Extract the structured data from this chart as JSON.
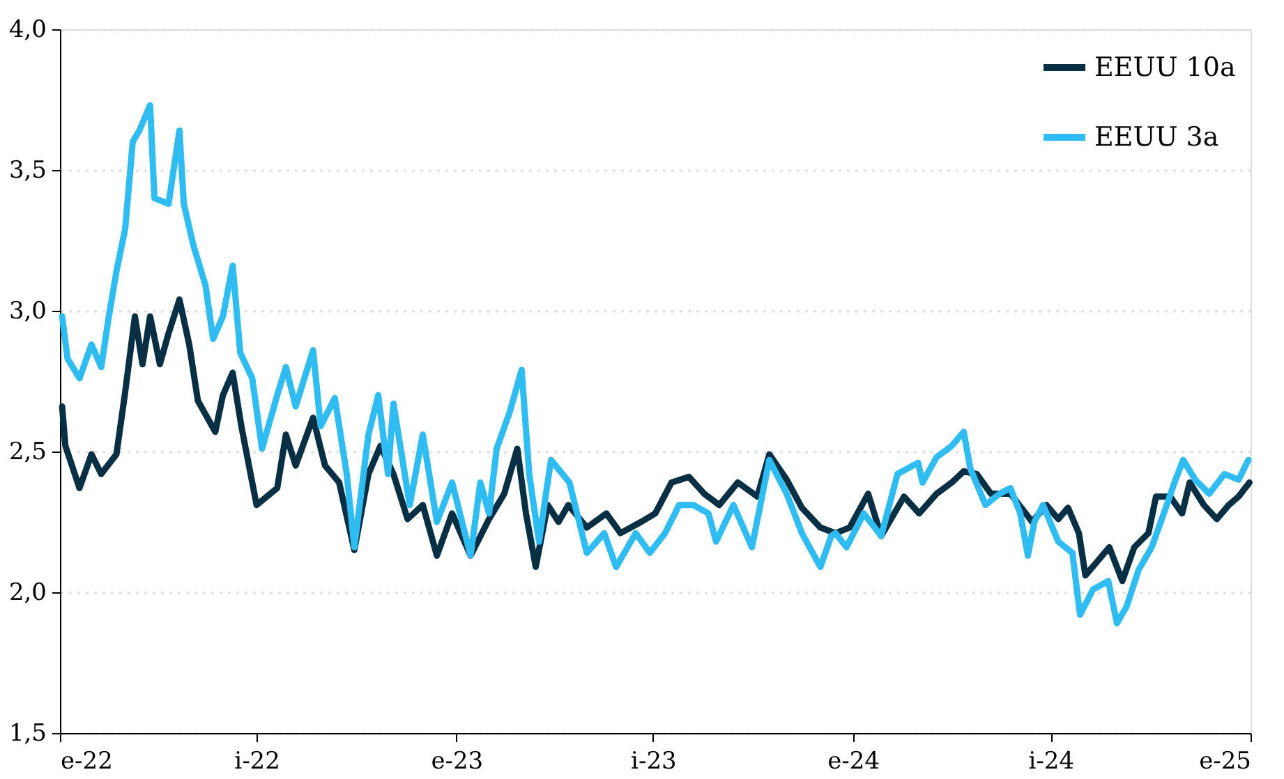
{
  "chart_data": {
    "type": "line",
    "xlim": [
      "2022-01-01",
      "2025-01-01"
    ],
    "xticks": [
      {
        "value": "2022-01-01",
        "label": "e-22"
      },
      {
        "value": "2022-07-01",
        "label": "i-22"
      },
      {
        "value": "2023-01-01",
        "label": "e-23"
      },
      {
        "value": "2023-07-01",
        "label": "i-23"
      },
      {
        "value": "2024-01-01",
        "label": "e-24"
      },
      {
        "value": "2024-07-01",
        "label": "i-24"
      },
      {
        "value": "2025-01-01",
        "label": "e-25"
      }
    ],
    "ylim": [
      1.5,
      4.0
    ],
    "yticks": [
      {
        "value": 1.5,
        "label": "1,5"
      },
      {
        "value": 2.0,
        "label": "2,0"
      },
      {
        "value": 2.5,
        "label": "2,5"
      },
      {
        "value": 3.0,
        "label": "3,0"
      },
      {
        "value": 3.5,
        "label": "3,5"
      },
      {
        "value": 4.0,
        "label": "4,0"
      }
    ],
    "grid": "y",
    "legend": "top right",
    "marker": "none",
    "line_style": "solid",
    "series": [
      {
        "name": "EEUU 10a",
        "color": "#082f44",
        "x": [
          "2022-01-03",
          "2022-01-06",
          "2022-01-19",
          "2022-01-30",
          "2022-02-08",
          "2022-02-22",
          "2022-03-02",
          "2022-03-11",
          "2022-03-18",
          "2022-03-25",
          "2022-04-03",
          "2022-04-11",
          "2022-04-21",
          "2022-04-30",
          "2022-05-08",
          "2022-05-24",
          "2022-05-31",
          "2022-06-09",
          "2022-06-17",
          "2022-07-01",
          "2022-07-20",
          "2022-07-28",
          "2022-08-06",
          "2022-08-22",
          "2022-09-02",
          "2022-09-15",
          "2022-09-29",
          "2022-10-12",
          "2022-10-23",
          "2022-11-04",
          "2022-11-17",
          "2022-12-01",
          "2022-12-14",
          "2022-12-28",
          "2023-01-14",
          "2023-01-31",
          "2023-02-14",
          "2023-02-26",
          "2023-03-06",
          "2023-03-15",
          "2023-03-26",
          "2023-04-05",
          "2023-04-14",
          "2023-05-01",
          "2023-05-19",
          "2023-06-01",
          "2023-06-20",
          "2023-07-03",
          "2023-07-18",
          "2023-08-03",
          "2023-08-17",
          "2023-08-31",
          "2023-09-17",
          "2023-10-05",
          "2023-10-16",
          "2023-11-01",
          "2023-11-15",
          "2023-12-02",
          "2023-12-16",
          "2023-12-29",
          "2024-01-15",
          "2024-01-27",
          "2024-02-17",
          "2024-03-02",
          "2024-03-18",
          "2024-04-01",
          "2024-04-12",
          "2024-04-24",
          "2024-05-07",
          "2024-05-25",
          "2024-06-04",
          "2024-06-14",
          "2024-06-27",
          "2024-07-08",
          "2024-07-17",
          "2024-07-27",
          "2024-08-02",
          "2024-08-13",
          "2024-08-24",
          "2024-09-05",
          "2024-09-16",
          "2024-09-29",
          "2024-10-06",
          "2024-10-19",
          "2024-10-30",
          "2024-11-06",
          "2024-11-19",
          "2024-12-01",
          "2024-12-12",
          "2024-12-21",
          "2024-12-31"
        ],
        "values": [
          2.66,
          2.52,
          2.37,
          2.49,
          2.42,
          2.49,
          2.71,
          2.98,
          2.81,
          2.98,
          2.81,
          2.92,
          3.04,
          2.88,
          2.68,
          2.57,
          2.7,
          2.78,
          2.59,
          2.31,
          2.37,
          2.56,
          2.45,
          2.62,
          2.45,
          2.39,
          2.15,
          2.42,
          2.52,
          2.42,
          2.26,
          2.31,
          2.13,
          2.28,
          2.13,
          2.26,
          2.35,
          2.51,
          2.28,
          2.09,
          2.31,
          2.25,
          2.31,
          2.23,
          2.28,
          2.21,
          2.25,
          2.28,
          2.39,
          2.41,
          2.35,
          2.31,
          2.39,
          2.34,
          2.49,
          2.4,
          2.3,
          2.23,
          2.21,
          2.23,
          2.35,
          2.2,
          2.34,
          2.28,
          2.35,
          2.39,
          2.43,
          2.42,
          2.35,
          2.35,
          2.3,
          2.25,
          2.31,
          2.26,
          2.3,
          2.21,
          2.06,
          2.11,
          2.16,
          2.04,
          2.16,
          2.21,
          2.34,
          2.34,
          2.28,
          2.39,
          2.31,
          2.26,
          2.31,
          2.34,
          2.39
        ]
      },
      {
        "name": "EEUU 3a",
        "color": "#2ebcf2",
        "x": [
          "2022-01-03",
          "2022-01-08",
          "2022-01-19",
          "2022-01-30",
          "2022-02-08",
          "2022-02-15",
          "2022-02-22",
          "2022-03-02",
          "2022-03-09",
          "2022-03-15",
          "2022-03-25",
          "2022-03-29",
          "2022-04-11",
          "2022-04-21",
          "2022-04-25",
          "2022-05-04",
          "2022-05-15",
          "2022-05-22",
          "2022-05-31",
          "2022-06-09",
          "2022-06-16",
          "2022-06-27",
          "2022-07-06",
          "2022-07-20",
          "2022-07-28",
          "2022-08-06",
          "2022-08-22",
          "2022-08-29",
          "2022-09-11",
          "2022-09-22",
          "2022-09-29",
          "2022-10-12",
          "2022-10-21",
          "2022-10-30",
          "2022-11-04",
          "2022-11-19",
          "2022-12-01",
          "2022-12-14",
          "2022-12-28",
          "2023-01-14",
          "2023-01-23",
          "2023-01-31",
          "2023-02-07",
          "2023-02-19",
          "2023-03-02",
          "2023-03-09",
          "2023-03-18",
          "2023-03-29",
          "2023-04-15",
          "2023-05-01",
          "2023-05-17",
          "2023-05-28",
          "2023-06-15",
          "2023-06-28",
          "2023-07-12",
          "2023-07-25",
          "2023-08-07",
          "2023-08-21",
          "2023-08-28",
          "2023-09-13",
          "2023-09-30",
          "2023-10-16",
          "2023-11-01",
          "2023-11-15",
          "2023-12-02",
          "2023-12-12",
          "2023-12-16",
          "2023-12-26",
          "2024-01-11",
          "2024-01-27",
          "2024-02-11",
          "2024-03-01",
          "2024-03-05",
          "2024-03-18",
          "2024-04-01",
          "2024-04-12",
          "2024-04-18",
          "2024-05-02",
          "2024-05-15",
          "2024-05-25",
          "2024-06-03",
          "2024-06-10",
          "2024-06-16",
          "2024-06-24",
          "2024-07-08",
          "2024-07-21",
          "2024-07-28",
          "2024-08-09",
          "2024-08-23",
          "2024-08-31",
          "2024-09-09",
          "2024-09-20",
          "2024-10-02",
          "2024-10-15",
          "2024-10-23",
          "2024-10-31",
          "2024-11-11",
          "2024-11-24",
          "2024-12-08",
          "2024-12-21",
          "2024-12-30"
        ],
        "values": [
          2.98,
          2.83,
          2.76,
          2.88,
          2.8,
          2.98,
          3.14,
          3.29,
          3.6,
          3.64,
          3.73,
          3.4,
          3.38,
          3.64,
          3.38,
          3.23,
          3.09,
          2.9,
          2.98,
          3.16,
          2.85,
          2.76,
          2.51,
          2.7,
          2.8,
          2.66,
          2.86,
          2.59,
          2.69,
          2.42,
          2.16,
          2.56,
          2.7,
          2.42,
          2.67,
          2.31,
          2.56,
          2.25,
          2.39,
          2.13,
          2.39,
          2.28,
          2.51,
          2.64,
          2.79,
          2.42,
          2.18,
          2.47,
          2.39,
          2.14,
          2.21,
          2.09,
          2.21,
          2.14,
          2.21,
          2.31,
          2.31,
          2.28,
          2.18,
          2.31,
          2.16,
          2.47,
          2.35,
          2.21,
          2.09,
          2.2,
          2.21,
          2.16,
          2.28,
          2.2,
          2.42,
          2.46,
          2.39,
          2.48,
          2.52,
          2.57,
          2.44,
          2.31,
          2.35,
          2.37,
          2.28,
          2.13,
          2.25,
          2.31,
          2.18,
          2.14,
          1.92,
          2.01,
          2.04,
          1.89,
          1.95,
          2.08,
          2.16,
          2.3,
          2.39,
          2.47,
          2.4,
          2.35,
          2.42,
          2.4,
          2.47
        ]
      }
    ]
  }
}
